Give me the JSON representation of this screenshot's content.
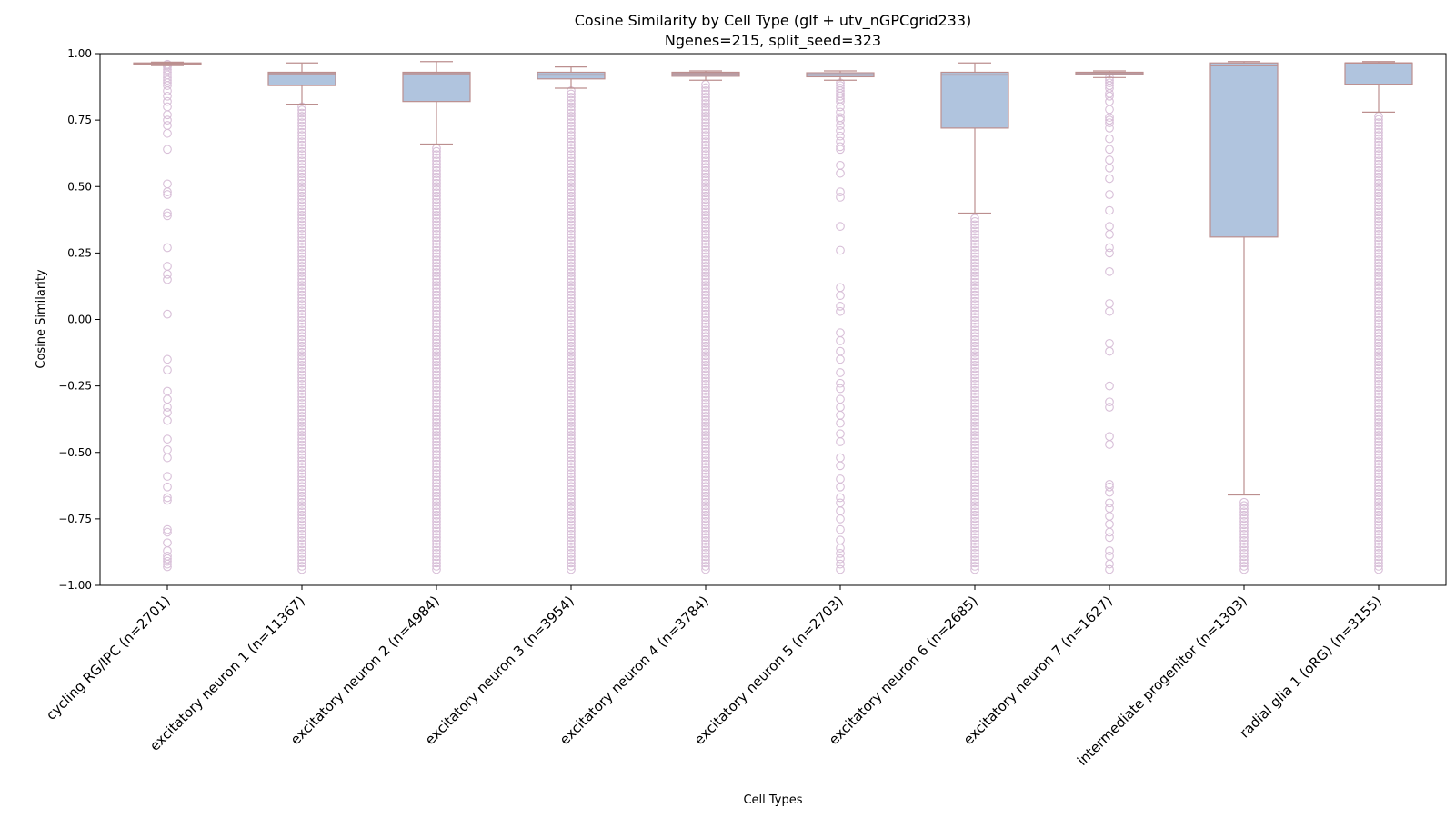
{
  "chart_data": {
    "type": "box",
    "title": "Cosine Similarity by Cell Type (glf + utv_nGPCgrid233)",
    "subtitle": "Ngenes=215, split_seed=323",
    "xlabel": "Cell Types",
    "ylabel": "Cosine Similarity",
    "ylim": [
      -1.0,
      1.0
    ],
    "yticks": [
      1.0,
      0.75,
      0.5,
      0.25,
      0.0,
      -0.25,
      -0.5,
      -0.75,
      -1.0
    ],
    "ytick_labels": [
      "1.00",
      "0.75",
      "0.50",
      "0.25",
      "0.00",
      "−0.25",
      "−0.50",
      "−0.75",
      "−1.00"
    ],
    "grid": false,
    "colors": {
      "box_fill": "#b0c4de",
      "box_edge": "#bc8f8f",
      "flier_edge": "#d8bfd8"
    },
    "categories": [
      "cycling RG/IPC (n=2701)",
      "excitatory neuron 1 (n=11367)",
      "excitatory neuron 2 (n=4984)",
      "excitatory neuron 3 (n=3954)",
      "excitatory neuron 4 (n=3784)",
      "excitatory neuron 5 (n=2703)",
      "excitatory neuron 6 (n=2685)",
      "excitatory neuron 7 (n=1627)",
      "intermediate progenitor (n=1303)",
      "radial glia 1 (oRG) (n=3155)"
    ],
    "boxes": [
      {
        "whisker_low": 0.955,
        "q1": 0.958,
        "median": 0.962,
        "q3": 0.965,
        "whisker_high": 0.968,
        "outliers": [
          0.96,
          0.955,
          0.95,
          0.94,
          0.93,
          0.92,
          0.91,
          0.9,
          0.89,
          0.88,
          0.86,
          0.84,
          0.82,
          0.8,
          0.77,
          0.75,
          0.73,
          0.7,
          0.64,
          0.51,
          0.48,
          0.47,
          0.4,
          0.39,
          0.27,
          0.2,
          0.17,
          0.15,
          0.02,
          -0.15,
          -0.19,
          -0.27,
          -0.3,
          -0.33,
          -0.35,
          -0.38,
          -0.45,
          -0.49,
          -0.52,
          -0.59,
          -0.63,
          -0.67,
          -0.68,
          -0.79,
          -0.8,
          -0.84,
          -0.87,
          -0.89,
          -0.9,
          -0.91,
          -0.92,
          -0.93
        ]
      },
      {
        "whisker_low": 0.81,
        "q1": 0.88,
        "median": 0.925,
        "q3": 0.93,
        "whisker_high": 0.965,
        "dense_outliers": [
          -0.94,
          0.81
        ]
      },
      {
        "whisker_low": 0.66,
        "q1": 0.82,
        "median": 0.925,
        "q3": 0.93,
        "whisker_high": 0.97,
        "dense_outliers": [
          -0.94,
          0.65
        ]
      },
      {
        "whisker_low": 0.87,
        "q1": 0.905,
        "median": 0.92,
        "q3": 0.93,
        "whisker_high": 0.95,
        "dense_outliers": [
          -0.94,
          0.87
        ]
      },
      {
        "whisker_low": 0.9,
        "q1": 0.915,
        "median": 0.925,
        "q3": 0.93,
        "whisker_high": 0.935,
        "dense_outliers": [
          -0.94,
          0.89
        ]
      },
      {
        "whisker_low": 0.9,
        "q1": 0.913,
        "median": 0.92,
        "q3": 0.928,
        "whisker_high": 0.935,
        "outliers": [
          0.89,
          0.88,
          0.87,
          0.86,
          0.85,
          0.84,
          0.83,
          0.82,
          0.8,
          0.78,
          0.76,
          0.75,
          0.73,
          0.71,
          0.69,
          0.67,
          0.65,
          0.64,
          0.58,
          0.55,
          0.48,
          0.46,
          0.35,
          0.26,
          0.12,
          0.09,
          0.05,
          0.03,
          -0.05,
          -0.08,
          -0.12,
          -0.15,
          -0.2,
          -0.24,
          -0.26,
          -0.3,
          -0.33,
          -0.36,
          -0.39,
          -0.43,
          -0.46,
          -0.52,
          -0.55,
          -0.6,
          -0.63,
          -0.67,
          -0.69,
          -0.72,
          -0.75,
          -0.79,
          -0.83,
          -0.86,
          -0.88,
          -0.9,
          -0.92,
          -0.94
        ]
      },
      {
        "whisker_low": 0.4,
        "q1": 0.72,
        "median": 0.92,
        "q3": 0.93,
        "whisker_high": 0.965,
        "dense_outliers": [
          -0.94,
          0.39
        ]
      },
      {
        "whisker_low": 0.91,
        "q1": 0.92,
        "median": 0.925,
        "q3": 0.93,
        "whisker_high": 0.935,
        "outliers": [
          0.91,
          0.9,
          0.89,
          0.88,
          0.87,
          0.85,
          0.84,
          0.82,
          0.79,
          0.76,
          0.75,
          0.74,
          0.72,
          0.68,
          0.64,
          0.6,
          0.57,
          0.53,
          0.47,
          0.41,
          0.35,
          0.32,
          0.27,
          0.25,
          0.18,
          0.06,
          0.03,
          -0.09,
          -0.12,
          -0.25,
          -0.31,
          -0.33,
          -0.44,
          -0.47,
          -0.62,
          -0.63,
          -0.65,
          -0.69,
          -0.71,
          -0.74,
          -0.77,
          -0.8,
          -0.82,
          -0.87,
          -0.89,
          -0.92,
          -0.94
        ]
      },
      {
        "whisker_low": -0.66,
        "q1": 0.31,
        "median": 0.955,
        "q3": 0.965,
        "whisker_high": 0.97,
        "dense_outliers": [
          -0.94,
          -0.68
        ]
      },
      {
        "whisker_low": 0.78,
        "q1": 0.885,
        "median": 0.965,
        "q3": 0.965,
        "whisker_high": 0.97,
        "dense_outliers": [
          -0.94,
          0.77
        ]
      }
    ]
  }
}
